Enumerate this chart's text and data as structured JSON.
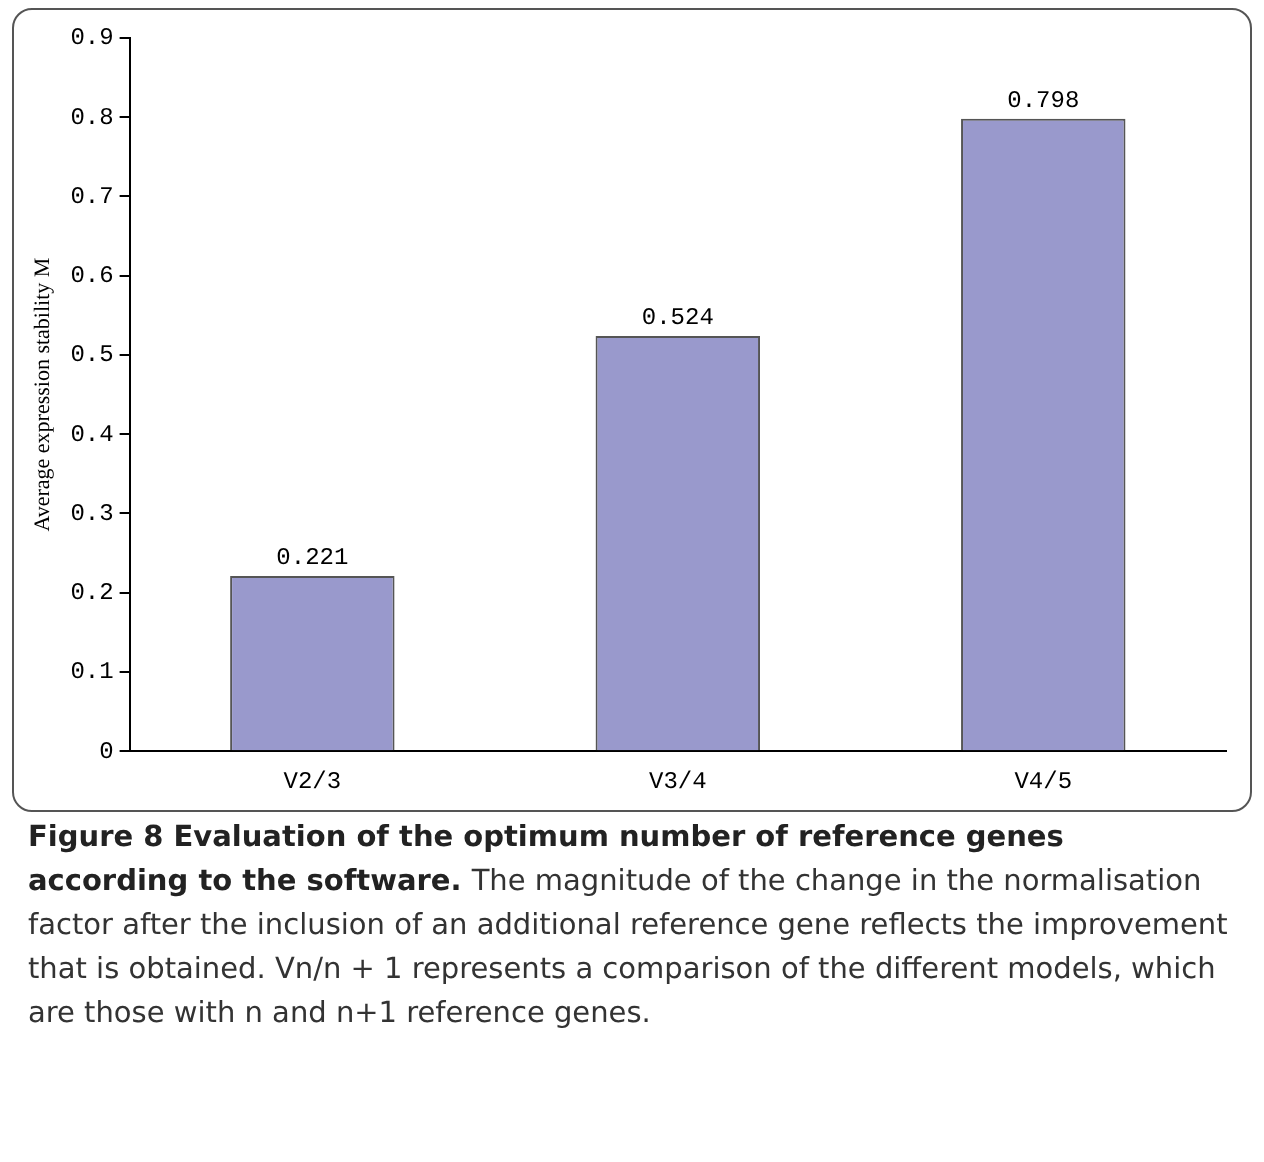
{
  "chart_data": {
    "type": "bar",
    "ylabel": "Average expression stability M",
    "categories": [
      "V2/3",
      "V3/4",
      "V4/5"
    ],
    "values": [
      0.221,
      0.524,
      0.798
    ],
    "color": "#9999cc",
    "ylim": [
      0,
      0.9
    ],
    "yticks": [
      0,
      0.1,
      0.2,
      0.3,
      0.4,
      0.5,
      0.6,
      0.7,
      0.8,
      0.9
    ],
    "grid": false,
    "legend": false,
    "data_labels": true,
    "annotations": [
      "Figure 8 Evaluation of the optimum number of reference genes according to the software.",
      "The magnitude of the change in the normalisation factor after the inclusion of an additional reference gene reflects the improvement that is obtained. Vn/n + 1 represents a comparison of the different models, which are those with n and n+1 reference genes."
    ]
  }
}
